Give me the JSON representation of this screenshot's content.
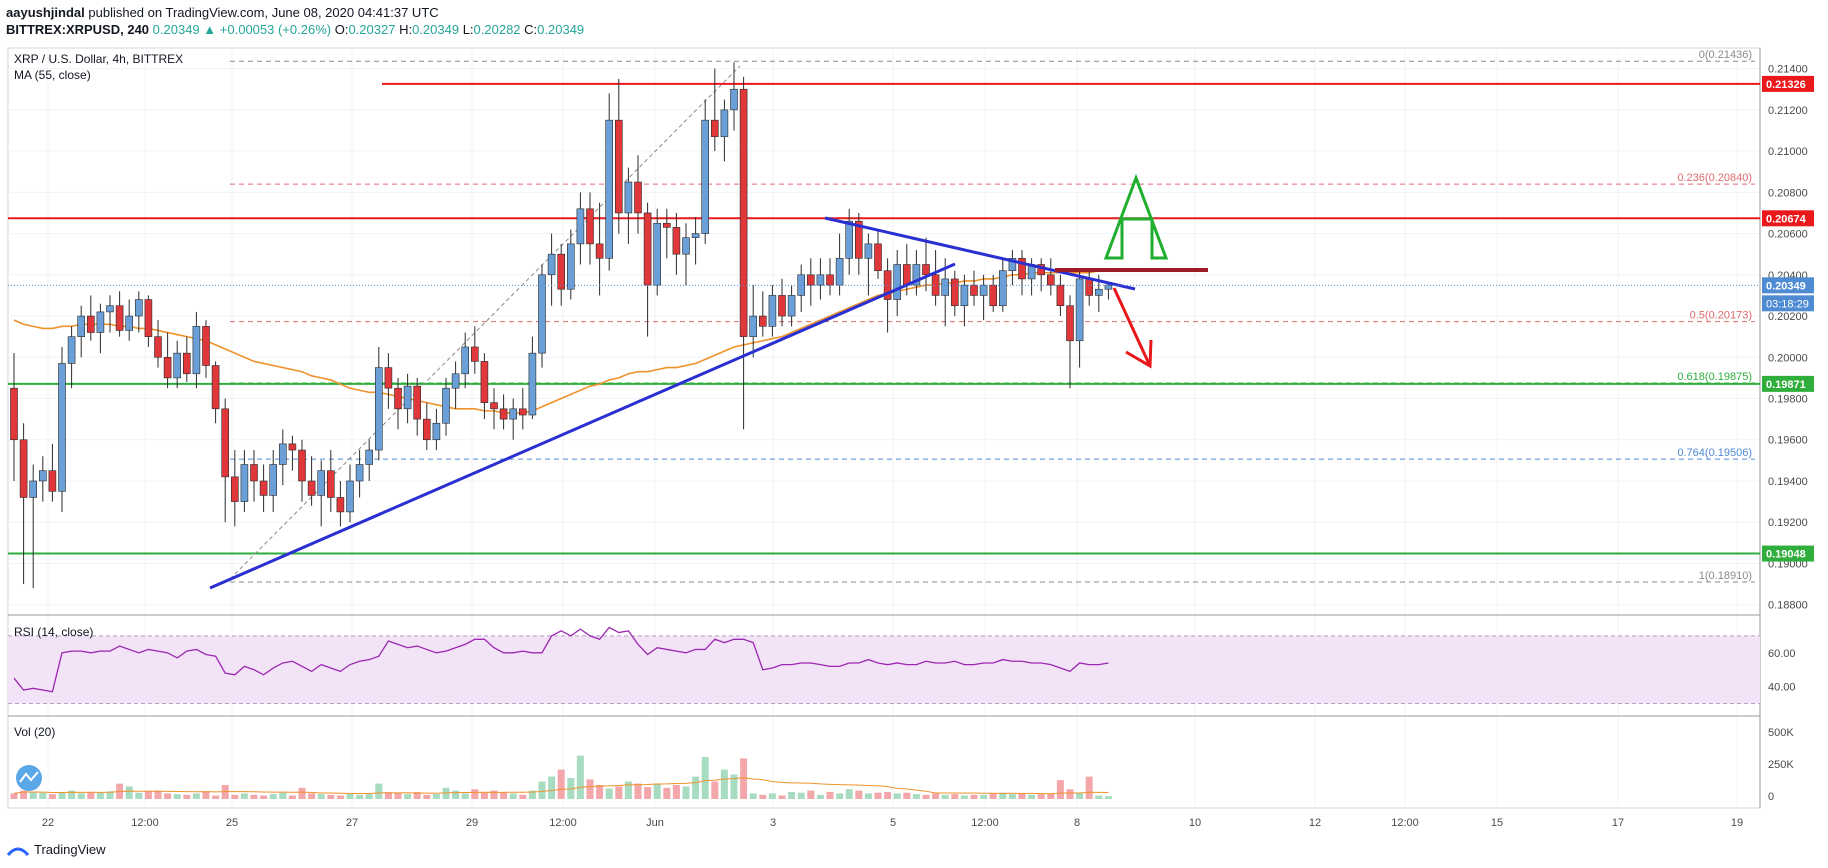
{
  "header": {
    "publisher": "aayushjindal",
    "published_text": "published on TradingView.com, June 08, 2020 04:41:37 UTC",
    "symbol": "BITTREX:XRPUSD, 240",
    "last": "0.20349",
    "change": "▲ +0.00053 (+0.26%)",
    "o_label": "O:",
    "o": "0.20327",
    "h_label": "H:",
    "h": "0.20349",
    "l_label": "L:",
    "l": "0.20282",
    "c_label": "C:",
    "c": "0.20349"
  },
  "legend": {
    "title": "XRP / U.S. Dollar, 4h, BITTREX",
    "ma": "MA (55, close)",
    "rsi": "RSI (14, close)",
    "vol": "Vol (20)"
  },
  "footer": {
    "brand": "TradingView"
  },
  "colors": {
    "up": "#6a9fd8",
    "down": "#e0373a",
    "ma": "#f0922b",
    "trend": "#2a2fd1",
    "resistance": "#e8181b",
    "support": "#2fae3c",
    "fib": "#e06b6b",
    "rsi_line": "#9c27b0",
    "rsi_band": "#f3e3f7"
  },
  "chart_data": {
    "type": "candlestick",
    "series": "XRPUSD 4h",
    "x_labels": [
      "22",
      "12:00",
      "25",
      "27",
      "29",
      "12:00",
      "Jun",
      "3",
      "5",
      "12:00",
      "8",
      "10",
      "12",
      "12:00",
      "15",
      "17",
      "19"
    ],
    "y_ticks": [
      "0.21400",
      "0.21200",
      "0.21000",
      "0.20800",
      "0.20600",
      "0.20400",
      "0.20200",
      "0.20000",
      "0.19800",
      "0.19600",
      "0.19400",
      "0.19200",
      "0.19000",
      "0.18800"
    ],
    "ylim": [
      0.1875,
      0.215
    ],
    "price_labels": [
      {
        "value": 0.21326,
        "text": "0.21326",
        "color": "#e8181b"
      },
      {
        "value": 0.20674,
        "text": "0.20674",
        "color": "#e8181b"
      },
      {
        "value": 0.20349,
        "text": "0.20349",
        "color": "#4f8bd3"
      },
      {
        "value": 0.19871,
        "text": "0.19871",
        "color": "#2fae3c"
      },
      {
        "value": 0.19048,
        "text": "0.19048",
        "color": "#2fae3c"
      }
    ],
    "countdown": "03:18:29",
    "horizontal_lines": [
      {
        "value": 0.21326,
        "kind": "resistance"
      },
      {
        "value": 0.20674,
        "kind": "resistance"
      },
      {
        "value": 0.19871,
        "kind": "support"
      },
      {
        "value": 0.19048,
        "kind": "support"
      }
    ],
    "fib_levels": [
      {
        "label": "0(0.21436)",
        "value": 0.21436
      },
      {
        "label": "0.236(0.20840)",
        "value": 0.2084
      },
      {
        "label": "0.5(0.20173)",
        "value": 0.20173
      },
      {
        "label": "0.618(0.19875)",
        "value": 0.19875
      },
      {
        "label": "0.764(0.19506)",
        "value": 0.19506
      },
      {
        "label": "1(0.18910)",
        "value": 0.1891
      }
    ],
    "candles": [
      [
        0.1985,
        0.2002,
        0.194,
        0.196
      ],
      [
        0.196,
        0.1968,
        0.189,
        0.1932
      ],
      [
        0.1932,
        0.1948,
        0.1888,
        0.194
      ],
      [
        0.194,
        0.1952,
        0.193,
        0.1945
      ],
      [
        0.1945,
        0.1958,
        0.193,
        0.1935
      ],
      [
        0.1935,
        0.2005,
        0.1925,
        0.1997
      ],
      [
        0.1997,
        0.2015,
        0.1985,
        0.201
      ],
      [
        0.201,
        0.2025,
        0.2,
        0.202
      ],
      [
        0.202,
        0.203,
        0.2008,
        0.2012
      ],
      [
        0.2012,
        0.2026,
        0.2002,
        0.2022
      ],
      [
        0.2022,
        0.203,
        0.2012,
        0.2025
      ],
      [
        0.2025,
        0.2032,
        0.201,
        0.2013
      ],
      [
        0.2013,
        0.2028,
        0.2008,
        0.202
      ],
      [
        0.202,
        0.2032,
        0.2012,
        0.2028
      ],
      [
        0.2028,
        0.203,
        0.2005,
        0.201
      ],
      [
        0.201,
        0.2018,
        0.1995,
        0.2
      ],
      [
        0.2,
        0.2012,
        0.1985,
        0.199
      ],
      [
        0.199,
        0.2008,
        0.1985,
        0.2002
      ],
      [
        0.2002,
        0.201,
        0.1988,
        0.1992
      ],
      [
        0.1992,
        0.2022,
        0.1985,
        0.2015
      ],
      [
        0.2015,
        0.2018,
        0.199,
        0.1996
      ],
      [
        0.1996,
        0.1998,
        0.1968,
        0.1975
      ],
      [
        0.1975,
        0.198,
        0.192,
        0.1942
      ],
      [
        0.1942,
        0.1955,
        0.1918,
        0.193
      ],
      [
        0.193,
        0.1955,
        0.1925,
        0.1948
      ],
      [
        0.1948,
        0.1955,
        0.193,
        0.194
      ],
      [
        0.194,
        0.1948,
        0.1925,
        0.1933
      ],
      [
        0.1933,
        0.1955,
        0.1925,
        0.1948
      ],
      [
        0.1948,
        0.1965,
        0.1938,
        0.1958
      ],
      [
        0.1958,
        0.1962,
        0.1945,
        0.1955
      ],
      [
        0.1955,
        0.196,
        0.193,
        0.194
      ],
      [
        0.194,
        0.1952,
        0.1928,
        0.1933
      ],
      [
        0.1933,
        0.195,
        0.1918,
        0.1945
      ],
      [
        0.1945,
        0.1955,
        0.1925,
        0.1932
      ],
      [
        0.1932,
        0.194,
        0.1918,
        0.1925
      ],
      [
        0.1925,
        0.1948,
        0.192,
        0.194
      ],
      [
        0.194,
        0.1955,
        0.1932,
        0.1948
      ],
      [
        0.1948,
        0.196,
        0.194,
        0.1955
      ],
      [
        0.1955,
        0.2005,
        0.195,
        0.1995
      ],
      [
        0.1995,
        0.2002,
        0.1975,
        0.1985
      ],
      [
        0.1985,
        0.199,
        0.1965,
        0.1975
      ],
      [
        0.1975,
        0.1992,
        0.1968,
        0.1986
      ],
      [
        0.1986,
        0.199,
        0.1962,
        0.197
      ],
      [
        0.197,
        0.1978,
        0.1955,
        0.196
      ],
      [
        0.196,
        0.1975,
        0.1955,
        0.1968
      ],
      [
        0.1968,
        0.199,
        0.1962,
        0.1985
      ],
      [
        0.1985,
        0.1998,
        0.1975,
        0.1992
      ],
      [
        0.1992,
        0.2012,
        0.1985,
        0.2005
      ],
      [
        0.2005,
        0.2015,
        0.1992,
        0.1998
      ],
      [
        0.1998,
        0.2002,
        0.197,
        0.1978
      ],
      [
        0.1978,
        0.1985,
        0.1965,
        0.1975
      ],
      [
        0.1975,
        0.1982,
        0.1965,
        0.197
      ],
      [
        0.197,
        0.198,
        0.196,
        0.1975
      ],
      [
        0.1975,
        0.1985,
        0.1965,
        0.1972
      ],
      [
        0.1972,
        0.201,
        0.197,
        0.2002
      ],
      [
        0.2002,
        0.2045,
        0.1995,
        0.204
      ],
      [
        0.204,
        0.206,
        0.2025,
        0.205
      ],
      [
        0.205,
        0.2055,
        0.2025,
        0.2033
      ],
      [
        0.2033,
        0.2062,
        0.2028,
        0.2055
      ],
      [
        0.2055,
        0.208,
        0.2045,
        0.2072
      ],
      [
        0.2072,
        0.208,
        0.2045,
        0.2055
      ],
      [
        0.2055,
        0.2075,
        0.203,
        0.2048
      ],
      [
        0.2048,
        0.2128,
        0.2042,
        0.2115
      ],
      [
        0.2115,
        0.2135,
        0.206,
        0.207
      ],
      [
        0.207,
        0.2092,
        0.2055,
        0.2085
      ],
      [
        0.2085,
        0.2098,
        0.206,
        0.207
      ],
      [
        0.207,
        0.2075,
        0.201,
        0.2035
      ],
      [
        0.2035,
        0.2072,
        0.203,
        0.2065
      ],
      [
        0.2065,
        0.2072,
        0.2048,
        0.2063
      ],
      [
        0.2063,
        0.207,
        0.204,
        0.205
      ],
      [
        0.205,
        0.2065,
        0.2035,
        0.2058
      ],
      [
        0.2058,
        0.2068,
        0.2045,
        0.206
      ],
      [
        0.206,
        0.2125,
        0.2055,
        0.2115
      ],
      [
        0.2115,
        0.214,
        0.21,
        0.2107
      ],
      [
        0.2107,
        0.2125,
        0.2095,
        0.212
      ],
      [
        0.212,
        0.2143,
        0.211,
        0.213
      ],
      [
        0.213,
        0.2136,
        0.1965,
        0.201
      ],
      [
        0.201,
        0.2035,
        0.2,
        0.202
      ],
      [
        0.202,
        0.2032,
        0.201,
        0.2015
      ],
      [
        0.2015,
        0.2035,
        0.201,
        0.203
      ],
      [
        0.203,
        0.2038,
        0.2015,
        0.202
      ],
      [
        0.202,
        0.2035,
        0.2015,
        0.203
      ],
      [
        0.203,
        0.2045,
        0.2022,
        0.204
      ],
      [
        0.204,
        0.2048,
        0.2025,
        0.2035
      ],
      [
        0.2035,
        0.2048,
        0.2028,
        0.204
      ],
      [
        0.204,
        0.2048,
        0.203,
        0.2035
      ],
      [
        0.2035,
        0.206,
        0.203,
        0.2048
      ],
      [
        0.2048,
        0.2072,
        0.204,
        0.2066
      ],
      [
        0.2066,
        0.207,
        0.204,
        0.2048
      ],
      [
        0.2048,
        0.206,
        0.203,
        0.2055
      ],
      [
        0.2055,
        0.2062,
        0.2038,
        0.2042
      ],
      [
        0.2042,
        0.2048,
        0.2012,
        0.2028
      ],
      [
        0.2028,
        0.2052,
        0.202,
        0.2045
      ],
      [
        0.2045,
        0.2055,
        0.203,
        0.2035
      ],
      [
        0.2035,
        0.2052,
        0.203,
        0.2045
      ],
      [
        0.2045,
        0.2058,
        0.2032,
        0.204
      ],
      [
        0.204,
        0.2052,
        0.2025,
        0.203
      ],
      [
        0.203,
        0.2048,
        0.2015,
        0.2038
      ],
      [
        0.2038,
        0.2042,
        0.202,
        0.2025
      ],
      [
        0.2025,
        0.204,
        0.2015,
        0.2035
      ],
      [
        0.2035,
        0.2042,
        0.2025,
        0.203
      ],
      [
        0.203,
        0.204,
        0.2018,
        0.2035
      ],
      [
        0.2035,
        0.204,
        0.2022,
        0.2025
      ],
      [
        0.2025,
        0.2048,
        0.2022,
        0.2042
      ],
      [
        0.2042,
        0.2052,
        0.2035,
        0.2048
      ],
      [
        0.2048,
        0.2052,
        0.203,
        0.2038
      ],
      [
        0.2038,
        0.2048,
        0.203,
        0.2045
      ],
      [
        0.2045,
        0.2048,
        0.2032,
        0.204
      ],
      [
        0.204,
        0.2048,
        0.203,
        0.2035
      ],
      [
        0.2035,
        0.204,
        0.202,
        0.2025
      ],
      [
        0.2025,
        0.203,
        0.1985,
        0.2008
      ],
      [
        0.2008,
        0.2042,
        0.1995,
        0.2038
      ],
      [
        0.2038,
        0.2042,
        0.2025,
        0.203
      ],
      [
        0.203,
        0.204,
        0.2022,
        0.2033
      ],
      [
        0.2033,
        0.2036,
        0.2028,
        0.2035
      ]
    ],
    "ma": [
      0.2018,
      0.2016,
      0.2015,
      0.2014,
      0.2014,
      0.2015,
      0.2015,
      0.2016,
      0.2016,
      0.2016,
      0.2016,
      0.2015,
      0.2015,
      0.2014,
      0.2014,
      0.2013,
      0.2012,
      0.2011,
      0.201,
      0.2009,
      0.2008,
      0.2006,
      0.2004,
      0.2002,
      0.2,
      0.1998,
      0.1997,
      0.1996,
      0.1995,
      0.1994,
      0.1993,
      0.1991,
      0.199,
      0.1989,
      0.1987,
      0.1985,
      0.1984,
      0.1983,
      0.1983,
      0.1982,
      0.1981,
      0.198,
      0.1979,
      0.1978,
      0.1977,
      0.1976,
      0.1975,
      0.1975,
      0.1975,
      0.1974,
      0.1974,
      0.1973,
      0.1973,
      0.1973,
      0.1974,
      0.1976,
      0.1978,
      0.198,
      0.1982,
      0.1984,
      0.1986,
      0.1987,
      0.1989,
      0.199,
      0.1992,
      0.1993,
      0.1993,
      0.1994,
      0.1995,
      0.1995,
      0.1996,
      0.1997,
      0.1999,
      0.2001,
      0.2003,
      0.2005,
      0.2006,
      0.2007,
      0.2008,
      0.2009,
      0.201,
      0.2012,
      0.2014,
      0.2016,
      0.2018,
      0.202,
      0.2022,
      0.2024,
      0.2026,
      0.2028,
      0.203,
      0.2031,
      0.2032,
      0.2033,
      0.2034,
      0.2035,
      0.2035,
      0.2036,
      0.2036,
      0.2037,
      0.2037,
      0.2038,
      0.2038,
      0.2039,
      0.204,
      0.204,
      0.2041,
      0.2041,
      0.2041,
      0.2041,
      0.2041,
      0.2041,
      0.2041,
      0.2042,
      0.2042
    ],
    "rsi": [
      45,
      38,
      39,
      38,
      37,
      60,
      61,
      61,
      60,
      61,
      61,
      64,
      62,
      60,
      62,
      61,
      60,
      57,
      61,
      62,
      59,
      58,
      48,
      47,
      52,
      50,
      47,
      51,
      54,
      55,
      52,
      49,
      53,
      51,
      49,
      53,
      55,
      56,
      58,
      67,
      65,
      63,
      64,
      62,
      60,
      61,
      63,
      65,
      68,
      68,
      63,
      60,
      60,
      61,
      60,
      60,
      70,
      73,
      70,
      74,
      70,
      68,
      75,
      72,
      73,
      65,
      59,
      63,
      62,
      61,
      60,
      62,
      62,
      68,
      66,
      68,
      68,
      66,
      50,
      51,
      53,
      53,
      54,
      54,
      53,
      52,
      52,
      54,
      54,
      56,
      54,
      53,
      54,
      53,
      53,
      55,
      54,
      54,
      55,
      53,
      53,
      54,
      54,
      56,
      55,
      55,
      54,
      54,
      53,
      51,
      49,
      54,
      53,
      53,
      54
    ],
    "rsi_ticks": [
      "60.00",
      "40.00"
    ],
    "vol_ticks": [
      "500K",
      "250K",
      "0"
    ],
    "volume": [
      0.08,
      0.12,
      0.1,
      0.09,
      0.07,
      0.1,
      0.12,
      0.08,
      0.1,
      0.09,
      0.11,
      0.22,
      0.18,
      0.09,
      0.11,
      0.12,
      0.08,
      0.07,
      0.06,
      0.08,
      0.1,
      0.05,
      0.2,
      0.06,
      0.08,
      0.06,
      0.05,
      0.07,
      0.09,
      0.05,
      0.16,
      0.08,
      0.07,
      0.06,
      0.05,
      0.08,
      0.06,
      0.07,
      0.22,
      0.1,
      0.09,
      0.07,
      0.1,
      0.06,
      0.07,
      0.16,
      0.12,
      0.08,
      0.14,
      0.09,
      0.12,
      0.1,
      0.08,
      0.06,
      0.12,
      0.25,
      0.32,
      0.42,
      0.3,
      0.62,
      0.28,
      0.2,
      0.15,
      0.18,
      0.25,
      0.22,
      0.17,
      0.22,
      0.16,
      0.2,
      0.18,
      0.32,
      0.6,
      0.25,
      0.42,
      0.35,
      0.58,
      0.08,
      0.06,
      0.08,
      0.05,
      0.1,
      0.09,
      0.12,
      0.06,
      0.1,
      0.08,
      0.14,
      0.12,
      0.08,
      0.09,
      0.1,
      0.08,
      0.09,
      0.07,
      0.06,
      0.08,
      0.06,
      0.07,
      0.05,
      0.06,
      0.06,
      0.08,
      0.09,
      0.07,
      0.08,
      0.06,
      0.07,
      0.08,
      0.27,
      0.14,
      0.08,
      0.32,
      0.05,
      0.04
    ]
  }
}
